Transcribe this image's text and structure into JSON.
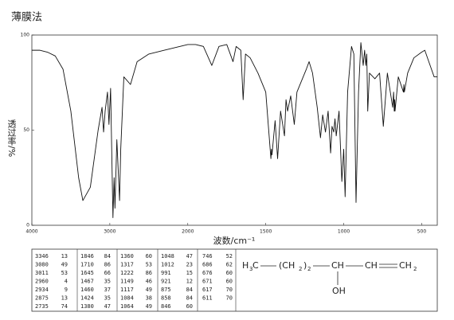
{
  "chart_data": {
    "type": "line",
    "title": "薄膜法",
    "x_label": "波数/cm⁻¹",
    "y_label": "透过率/%",
    "xlim": [
      4000,
      400
    ],
    "x_break": 2000,
    "xticks": [
      4000,
      3000,
      2000,
      1500,
      1000,
      500
    ],
    "ylim": [
      0,
      100
    ],
    "yticks": [
      0,
      50,
      100
    ],
    "color": "#111111",
    "x": [
      4000,
      3900,
      3800,
      3700,
      3600,
      3500,
      3400,
      3346,
      3250,
      3150,
      3100,
      3080,
      3060,
      3030,
      3011,
      2990,
      2960,
      2945,
      2934,
      2910,
      2875,
      2860,
      2820,
      2735,
      2650,
      2500,
      2300,
      2200,
      2100,
      2000,
      1950,
      1900,
      1846,
      1800,
      1750,
      1710,
      1690,
      1660,
      1645,
      1630,
      1600,
      1550,
      1500,
      1467,
      1463,
      1460,
      1440,
      1424,
      1405,
      1380,
      1370,
      1360,
      1340,
      1317,
      1300,
      1260,
      1240,
      1222,
      1200,
      1170,
      1149,
      1135,
      1117,
      1100,
      1084,
      1075,
      1064,
      1056,
      1048,
      1030,
      1012,
      1000,
      991,
      975,
      950,
      935,
      921,
      905,
      890,
      875,
      866,
      858,
      852,
      846,
      835,
      800,
      770,
      746,
      720,
      686,
      680,
      676,
      673,
      671,
      650,
      617,
      614,
      611,
      590,
      550,
      500,
      480,
      450,
      420,
      400
    ],
    "values": [
      92,
      92,
      91,
      89,
      82,
      60,
      25,
      13,
      20,
      50,
      62,
      49,
      60,
      70,
      53,
      72,
      4,
      25,
      9,
      45,
      13,
      40,
      78,
      74,
      86,
      90,
      92,
      93,
      94,
      95,
      95,
      94,
      84,
      94,
      95,
      86,
      94,
      92,
      66,
      90,
      88,
      80,
      70,
      35,
      40,
      37,
      55,
      35,
      60,
      47,
      66,
      60,
      68,
      53,
      70,
      78,
      82,
      86,
      80,
      62,
      46,
      58,
      49,
      60,
      38,
      52,
      49,
      56,
      47,
      60,
      23,
      40,
      15,
      70,
      94,
      90,
      12,
      70,
      96,
      84,
      92,
      84,
      90,
      60,
      80,
      77,
      80,
      52,
      80,
      62,
      70,
      60,
      66,
      60,
      78,
      70,
      74,
      70,
      80,
      88,
      91,
      92,
      85,
      78,
      78
    ]
  },
  "peak_table": {
    "rows": [
      [
        3346,
        13
      ],
      [
        3080,
        49
      ],
      [
        3011,
        53
      ],
      [
        2960,
        4
      ],
      [
        2934,
        9
      ],
      [
        2875,
        13
      ],
      [
        2735,
        74
      ],
      [
        1846,
        84
      ],
      [
        1710,
        86
      ],
      [
        1645,
        66
      ],
      [
        1467,
        35
      ],
      [
        1460,
        37
      ],
      [
        1424,
        35
      ],
      [
        1380,
        47
      ],
      [
        1360,
        60
      ],
      [
        1317,
        53
      ],
      [
        1222,
        86
      ],
      [
        1149,
        46
      ],
      [
        1117,
        49
      ],
      [
        1084,
        38
      ],
      [
        1064,
        49
      ],
      [
        1048,
        47
      ],
      [
        1012,
        23
      ],
      [
        991,
        15
      ],
      [
        921,
        12
      ],
      [
        875,
        84
      ],
      [
        858,
        84
      ],
      [
        846,
        60
      ],
      [
        746,
        52
      ],
      [
        686,
        62
      ],
      [
        676,
        60
      ],
      [
        671,
        60
      ],
      [
        617,
        70
      ],
      [
        611,
        70
      ]
    ]
  },
  "structure": {
    "formula": [
      "H",
      "3",
      "C",
      "(CH",
      "2",
      ")",
      "2",
      "CH",
      "CH",
      "CH",
      "2"
    ],
    "substituent": "OH"
  }
}
